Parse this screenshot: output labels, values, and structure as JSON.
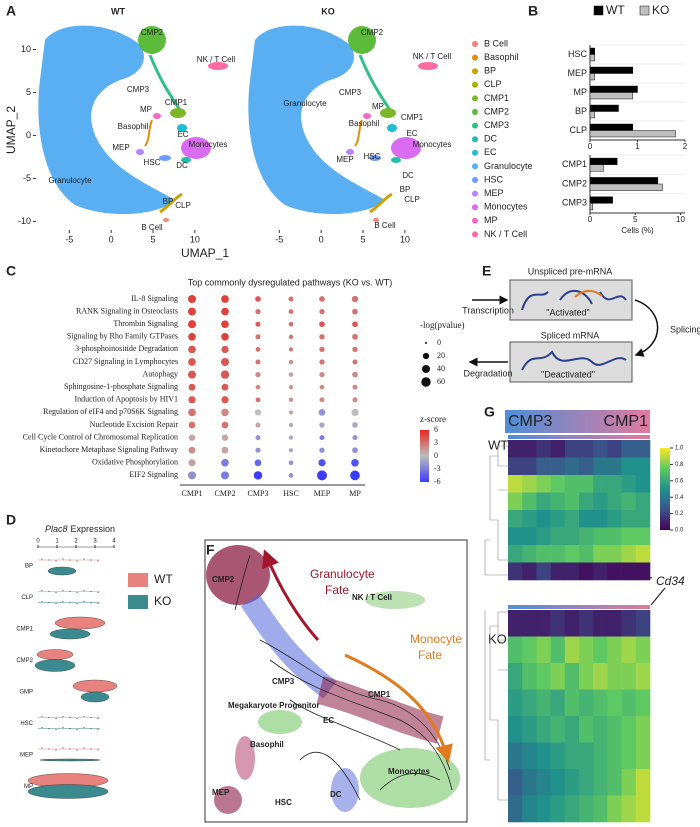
{
  "panel_labels": [
    "A",
    "B",
    "C",
    "D",
    "E",
    "F",
    "G"
  ],
  "umap": {
    "titles": [
      "WT",
      "KO"
    ],
    "xlabel": "UMAP_1",
    "ylabel": "UMAP_2",
    "xlim": [
      -8.5,
      13
    ],
    "ylim": [
      -11,
      12.5
    ],
    "xticks": [
      -5,
      0,
      5,
      10
    ],
    "yticks": [
      10,
      5,
      0,
      -5,
      -10
    ],
    "legend": [
      {
        "name": "B Cell",
        "color": "#f4837a"
      },
      {
        "name": "Basophil",
        "color": "#e1900b"
      },
      {
        "name": "BP",
        "color": "#c9a200"
      },
      {
        "name": "CLP",
        "color": "#a8b000"
      },
      {
        "name": "CMP1",
        "color": "#7ab72a"
      },
      {
        "name": "CMP2",
        "color": "#5dbb3c"
      },
      {
        "name": "CMP3",
        "color": "#2fc08a"
      },
      {
        "name": "DC",
        "color": "#1fbfae"
      },
      {
        "name": "EC",
        "color": "#1fbcd6"
      },
      {
        "name": "Granulocyte",
        "color": "#5aaef2"
      },
      {
        "name": "HSC",
        "color": "#6e9cff"
      },
      {
        "name": "MEP",
        "color": "#b983ff"
      },
      {
        "name": "Monocytes",
        "color": "#d96cf0"
      },
      {
        "name": "MP",
        "color": "#f667c9"
      },
      {
        "name": "NK / T Cell",
        "color": "#ff6aa3"
      }
    ],
    "wt_labels": [
      "CMP2",
      "NK / T Cell",
      "CMP3",
      "CMP1",
      "MP",
      "Basophil",
      "EC",
      "Monocytes",
      "MEP",
      "HSC",
      "DC",
      "BP",
      "CLP",
      "B Cell",
      "Granulocyte"
    ],
    "ko_labels": [
      "CMP2",
      "NK / T Cell",
      "CMP3",
      "CMP1",
      "MP",
      "Basophil",
      "EC",
      "Monocytes",
      "MEP",
      "HSC",
      "DC",
      "BP",
      "CLP",
      "B Cell",
      "Granulocyte"
    ]
  },
  "chart_data": [
    {
      "type": "bar",
      "orientation": "horizontal",
      "categories": [
        "HSC",
        "MEP",
        "MP",
        "BP",
        "CLP"
      ],
      "series": [
        {
          "name": "WT",
          "color": "#000000",
          "values": [
            0.1,
            0.9,
            1.0,
            0.6,
            0.9
          ]
        },
        {
          "name": "KO",
          "color": "#bfbfbf",
          "values": [
            0.1,
            0.1,
            0.9,
            0.1,
            1.8
          ]
        }
      ],
      "xlim": [
        0,
        2
      ],
      "xticks": [
        0,
        1,
        2
      ]
    },
    {
      "type": "bar",
      "orientation": "horizontal",
      "categories": [
        "CMP1",
        "CMP2",
        "CMP3"
      ],
      "series": [
        {
          "color": "#000000",
          "values": [
            3,
            7.5,
            2.5
          ]
        },
        {
          "color": "#bfbfbf",
          "values": [
            1.5,
            8,
            0.3
          ]
        }
      ],
      "xlim": [
        0,
        10.5
      ],
      "xticks": [
        0,
        5,
        10
      ],
      "xlabel": "Cells (%)"
    }
  ],
  "dotplot": {
    "title": "Top commonly dysregulated pathways (KO vs. WT)",
    "pathways": [
      "IL-8 Signaling",
      "RANK Signaling in Osteoclasts",
      "Thrombin Signaling",
      "Signaling by Rho Family GTPases",
      "3-phosphoinositide Degradation",
      "CD27 Signaling in Lymphocytes",
      "Autophagy",
      "Sphingosine-1-phosphate Signaling",
      "Induction of Apoptosis by HIV1",
      "Regulation of eIF4 and p70S6K Signaling",
      "Nucleotide Excision Repair",
      "Cell Cycle Control of Chromosomal Replication",
      "Kinetochore Metaphase Signaling Pathway",
      "Oxidative Phosphorylation",
      "EIF2 Signaling"
    ],
    "columns": [
      "CMP1",
      "CMP2",
      "CMP3",
      "HSC",
      "MEP",
      "MP"
    ],
    "pvalue": [
      [
        40,
        35,
        15,
        10,
        15,
        20
      ],
      [
        38,
        35,
        12,
        8,
        12,
        15
      ],
      [
        40,
        35,
        10,
        8,
        15,
        15
      ],
      [
        35,
        35,
        10,
        6,
        12,
        15
      ],
      [
        35,
        30,
        8,
        5,
        12,
        12
      ],
      [
        35,
        40,
        10,
        6,
        12,
        10
      ],
      [
        40,
        45,
        12,
        8,
        12,
        15
      ],
      [
        25,
        25,
        8,
        5,
        8,
        10
      ],
      [
        30,
        30,
        8,
        5,
        10,
        10
      ],
      [
        35,
        35,
        20,
        5,
        25,
        30
      ],
      [
        25,
        25,
        10,
        5,
        12,
        15
      ],
      [
        20,
        20,
        10,
        5,
        10,
        10
      ],
      [
        25,
        25,
        10,
        5,
        12,
        15
      ],
      [
        30,
        35,
        25,
        8,
        30,
        35
      ],
      [
        40,
        40,
        45,
        8,
        70,
        65
      ]
    ],
    "zscore": [
      [
        5,
        5,
        4,
        3,
        3,
        3
      ],
      [
        5,
        5,
        3,
        3,
        3,
        3
      ],
      [
        5,
        5,
        4,
        3,
        4,
        4
      ],
      [
        5,
        5,
        3,
        3,
        3,
        3
      ],
      [
        4,
        4,
        3,
        3,
        3,
        3
      ],
      [
        4,
        4,
        3,
        2,
        3,
        3
      ],
      [
        4,
        4,
        2,
        1,
        2,
        2
      ],
      [
        4,
        4,
        2,
        2,
        2,
        2
      ],
      [
        4,
        4,
        3,
        2,
        2,
        2
      ],
      [
        3,
        2,
        0,
        1,
        -2,
        0
      ],
      [
        3,
        3,
        1,
        -1,
        -1,
        -1
      ],
      [
        1,
        1,
        -2,
        -1,
        -3,
        -2
      ],
      [
        2,
        1,
        -2,
        -1,
        -2,
        -2
      ],
      [
        1,
        -3,
        -4,
        -2,
        -5,
        -5
      ],
      [
        -2,
        -3,
        -6,
        -2,
        -6,
        -6
      ]
    ],
    "size_title": "-log(pvalue)",
    "size_ticks": [
      0,
      20,
      40,
      60
    ],
    "color_title": "z-score",
    "color_ticks": [
      6,
      3,
      0,
      -3,
      -6
    ],
    "zlim": [
      -6,
      6
    ]
  },
  "violin": {
    "gene": "Plac8",
    "title": "Expression",
    "xticks": [
      0,
      1,
      2,
      3,
      4
    ],
    "categories": [
      "BP",
      "CLP",
      "CMP1",
      "CMP2",
      "GMP",
      "HSC",
      "MEP",
      "MP"
    ],
    "legend": [
      {
        "name": "WT",
        "color": "#e8827e"
      },
      {
        "name": "KO",
        "color": "#3a8a8f"
      }
    ]
  },
  "velocity": {
    "unspliced": "Unspliced pre-mRNA",
    "activated": "\"Activated\"",
    "transcription": "Transcription",
    "splicing": "Splicing",
    "spliced": "Spliced mRNA",
    "deactivated": "\"Deactivated\"",
    "degradation": "Degradation"
  },
  "stream": {
    "cmp2": "CMP2",
    "granulocyte_fate": [
      "Granulocyte",
      "Fate"
    ],
    "nk": "NK / T Cell",
    "monocyte_fate": [
      "Monocyte",
      "Fate"
    ],
    "cmp3": "CMP3",
    "cmp1": "CMP1",
    "megakaryote": "Megakaryote Progenitor",
    "ec": "EC",
    "basophil": "Basophil",
    "mep": "MEP",
    "hsc": "HSC",
    "dc": "DC",
    "monocytes": "Monocytes"
  },
  "heatmap": {
    "start": "CMP3",
    "end": "CMP1",
    "wt": "WT",
    "ko": "KO",
    "gene": "Cd34",
    "cbar_ticks": [
      {
        "value": 1,
        "label": "1.0"
      },
      0.8,
      0.6,
      0.4,
      0.2,
      {
        "value": 0,
        "label": "0.0"
      }
    ],
    "wt_values": [
      [
        0.1,
        0.1,
        0.15,
        0.1,
        0.2,
        0.2,
        0.25,
        0.2,
        0.3,
        0.3
      ],
      [
        0.2,
        0.2,
        0.3,
        0.3,
        0.35,
        0.3,
        0.4,
        0.4,
        0.5,
        0.5
      ],
      [
        0.9,
        0.85,
        0.8,
        0.75,
        0.7,
        0.7,
        0.6,
        0.6,
        0.55,
        0.5
      ],
      [
        0.8,
        0.7,
        0.6,
        0.65,
        0.7,
        0.6,
        0.55,
        0.6,
        0.65,
        0.6
      ],
      [
        0.6,
        0.55,
        0.5,
        0.55,
        0.6,
        0.5,
        0.5,
        0.55,
        0.6,
        0.6
      ],
      [
        0.5,
        0.5,
        0.55,
        0.6,
        0.6,
        0.65,
        0.7,
        0.7,
        0.75,
        0.75
      ],
      [
        0.6,
        0.65,
        0.7,
        0.7,
        0.75,
        0.7,
        0.8,
        0.8,
        0.85,
        0.9
      ],
      [
        0.15,
        0.1,
        0.2,
        0.1,
        0.1,
        0.05,
        0.1,
        0.05,
        0.05,
        0.05
      ]
    ],
    "ko_values": [
      [
        0.1,
        0.1,
        0.1,
        0.15,
        0.1,
        0.15,
        0.1,
        0.1,
        0.15,
        0.2
      ],
      [
        0.7,
        0.75,
        0.8,
        0.7,
        0.85,
        0.8,
        0.75,
        0.8,
        0.85,
        0.8
      ],
      [
        0.6,
        0.7,
        0.75,
        0.8,
        0.7,
        0.8,
        0.85,
        0.8,
        0.8,
        0.85
      ],
      [
        0.55,
        0.6,
        0.65,
        0.6,
        0.7,
        0.65,
        0.7,
        0.75,
        0.7,
        0.75
      ],
      [
        0.5,
        0.55,
        0.6,
        0.65,
        0.6,
        0.7,
        0.65,
        0.7,
        0.75,
        0.8
      ],
      [
        0.4,
        0.45,
        0.5,
        0.55,
        0.6,
        0.6,
        0.65,
        0.7,
        0.75,
        0.8
      ],
      [
        0.3,
        0.4,
        0.45,
        0.5,
        0.55,
        0.6,
        0.65,
        0.7,
        0.8,
        0.9
      ],
      [
        0.35,
        0.45,
        0.5,
        0.55,
        0.6,
        0.65,
        0.7,
        0.8,
        0.85,
        0.9
      ]
    ]
  }
}
